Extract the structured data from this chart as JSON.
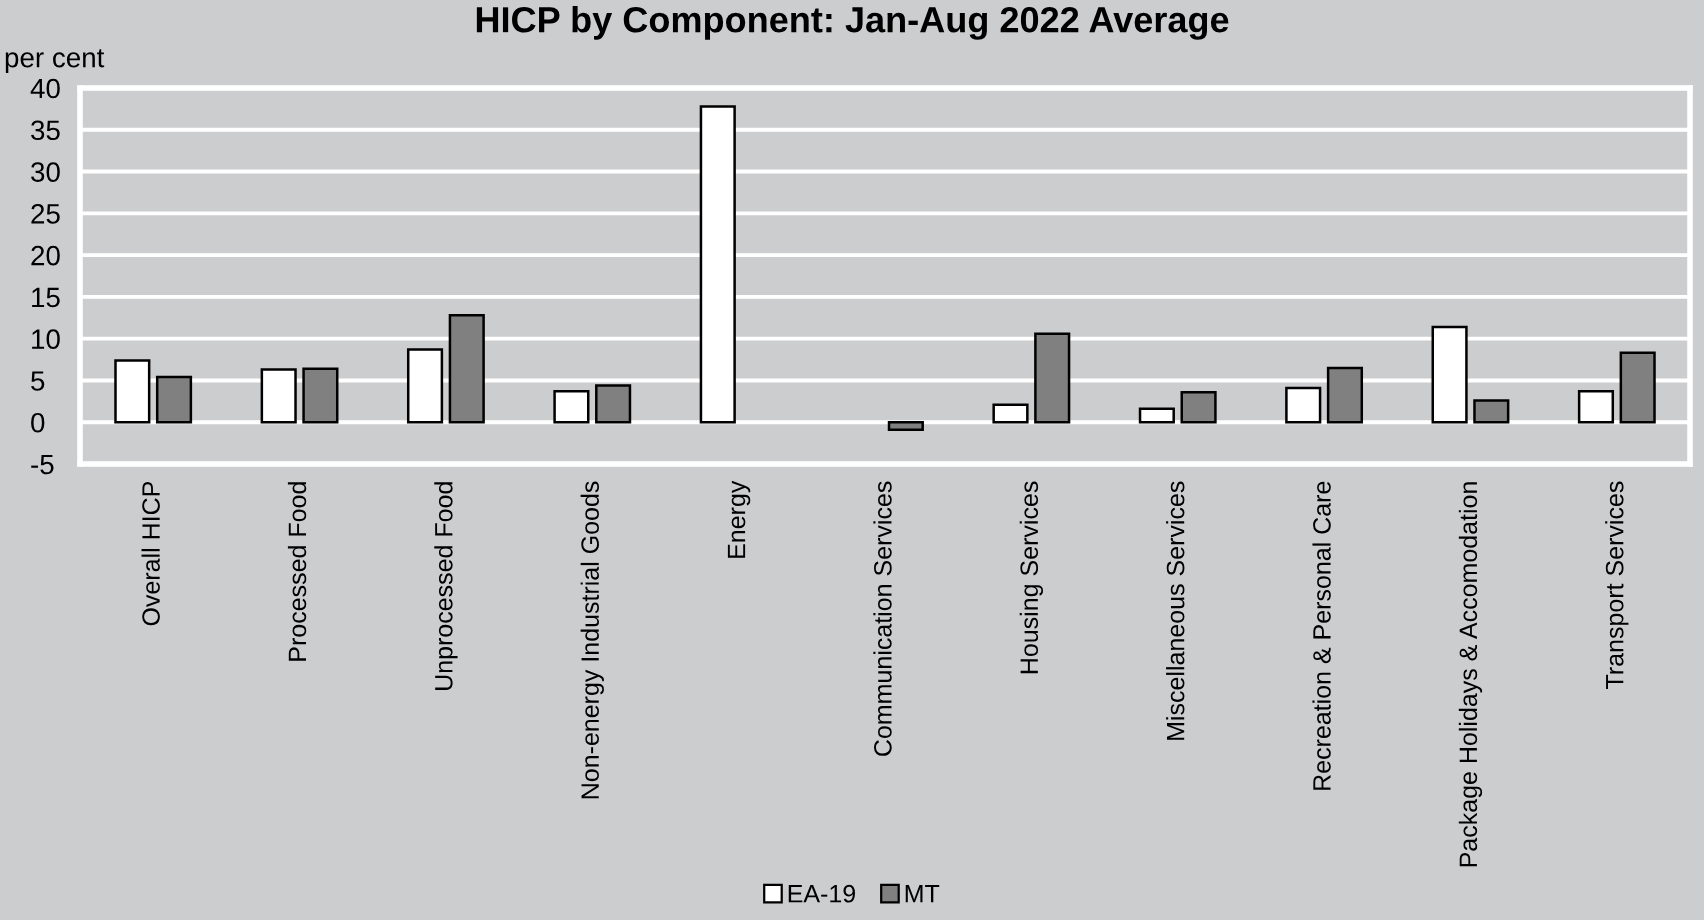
{
  "chart_data": {
    "type": "bar",
    "title": "HICP by Component: Jan-Aug 2022 Average",
    "ylabel": "per cent",
    "categories": [
      "Overall HICP",
      "Processed Food",
      "Unprocessed Food",
      "Non-energy Industrial Goods",
      "Energy",
      "Communication Services",
      "Housing Services",
      "Miscellaneous Services",
      "Recreation & Personal Care",
      "Package Holidays & Accomodation",
      "Transport Services"
    ],
    "series": [
      {
        "name": "EA-19",
        "color": "#ffffff",
        "values": [
          7.4,
          6.3,
          8.7,
          3.7,
          37.8,
          null,
          2.1,
          1.6,
          4.1,
          11.4,
          3.7
        ]
      },
      {
        "name": "MT",
        "color": "#808080",
        "values": [
          5.4,
          6.4,
          12.8,
          4.4,
          null,
          -0.9,
          10.6,
          3.6,
          6.5,
          2.6,
          8.3
        ]
      }
    ],
    "ylim": [
      -5,
      40
    ],
    "yticks": [
      -5,
      0,
      5,
      10,
      15,
      20,
      25,
      30,
      35,
      40
    ],
    "grid": "y",
    "legend": "bottom"
  }
}
